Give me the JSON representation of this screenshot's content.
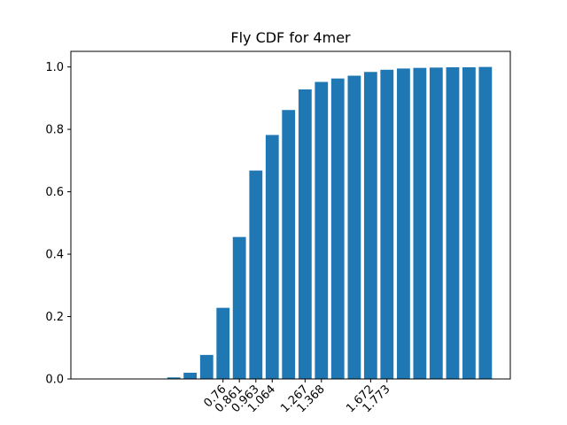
{
  "chart_data": {
    "type": "bar",
    "title": "Fly CDF for 4mer",
    "xlabel": "",
    "ylabel": "",
    "xlim": [
      0.0,
      2.4
    ],
    "ylim": [
      0.0,
      1.05
    ],
    "yticks": [
      0.0,
      0.2,
      0.4,
      0.6,
      0.8,
      1.0
    ],
    "ytick_labels": [
      "0.0",
      "0.2",
      "0.4",
      "0.6",
      "0.8",
      "1.0"
    ],
    "xticks": [
      0.76,
      0.861,
      0.963,
      1.064,
      1.267,
      1.368,
      1.672,
      1.773
    ],
    "xtick_labels": [
      "0.76",
      "0.861",
      "0.963",
      "1.064",
      "1.267",
      "1.368",
      "1.672",
      "1.773"
    ],
    "bar_color": "#1f77b4",
    "bar_width": 0.081,
    "bars": [
      {
        "x": 0.456,
        "value": 0.005
      },
      {
        "x": 0.557,
        "value": 0.02
      },
      {
        "x": 0.659,
        "value": 0.077
      },
      {
        "x": 0.76,
        "value": 0.228
      },
      {
        "x": 0.861,
        "value": 0.455
      },
      {
        "x": 0.963,
        "value": 0.668
      },
      {
        "x": 1.064,
        "value": 0.782
      },
      {
        "x": 1.165,
        "value": 0.862
      },
      {
        "x": 1.267,
        "value": 0.928
      },
      {
        "x": 1.368,
        "value": 0.952
      },
      {
        "x": 1.469,
        "value": 0.963
      },
      {
        "x": 1.571,
        "value": 0.972
      },
      {
        "x": 1.672,
        "value": 0.984
      },
      {
        "x": 1.773,
        "value": 0.991
      },
      {
        "x": 1.875,
        "value": 0.995
      },
      {
        "x": 1.976,
        "value": 0.997
      },
      {
        "x": 2.077,
        "value": 0.998
      },
      {
        "x": 2.179,
        "value": 0.999
      },
      {
        "x": 2.28,
        "value": 0.999
      },
      {
        "x": 2.381,
        "value": 1.0
      }
    ]
  }
}
